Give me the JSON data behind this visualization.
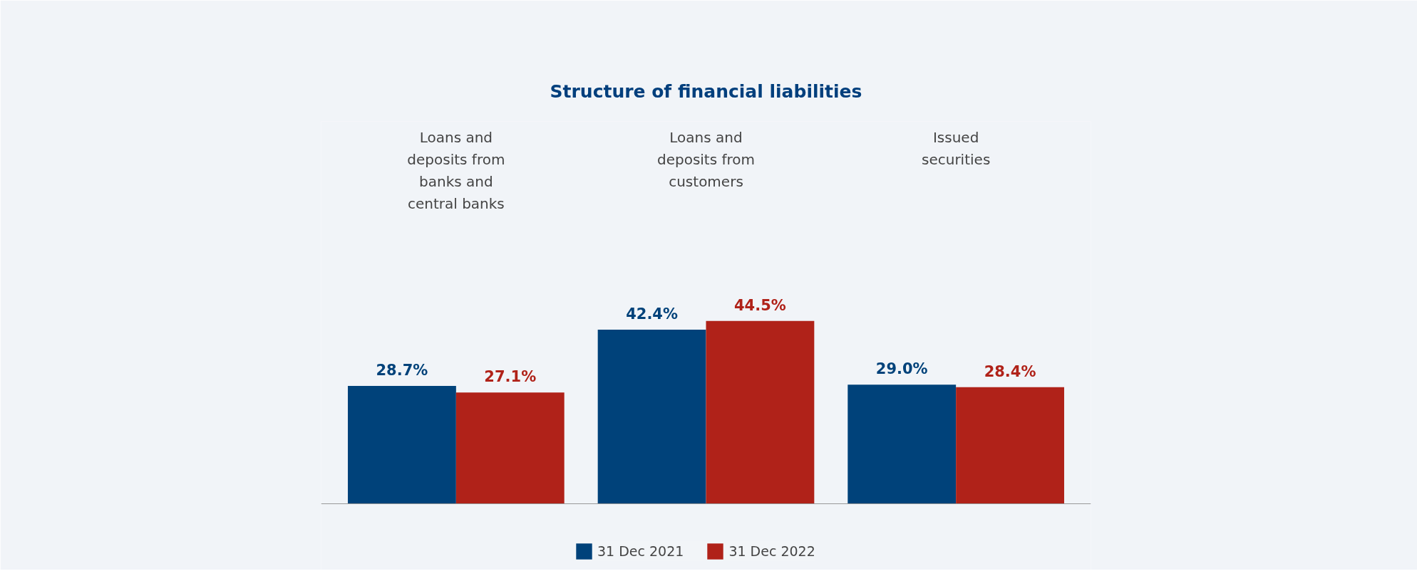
{
  "chart_data": {
    "type": "bar",
    "title": "Structure of financial liabilities",
    "categories": [
      "Loans and deposits from banks and central banks",
      "Loans and deposits from customers",
      "Issued securities"
    ],
    "series": [
      {
        "name": "31 Dec 2021",
        "color": "#00427a",
        "values": [
          28.7,
          42.4,
          29.0
        ],
        "value_labels": [
          "28.7%",
          "42.4%",
          "29.0%"
        ]
      },
      {
        "name": "31 Dec 2022",
        "color": "#b02219",
        "values": [
          27.1,
          44.5,
          28.4
        ],
        "value_labels": [
          "27.1%",
          "44.5%",
          "28.4%"
        ]
      }
    ],
    "legend": "bottom",
    "grid": false
  }
}
